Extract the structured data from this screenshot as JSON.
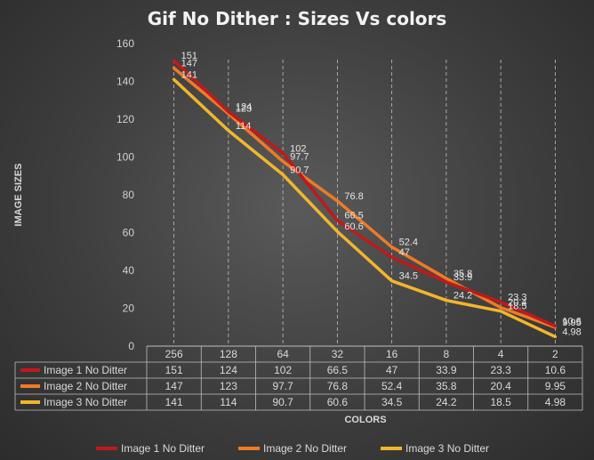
{
  "chart_data": {
    "type": "line",
    "title": "Gif No Dither  : Sizes Vs colors",
    "xlabel": "COLORS",
    "ylabel": "IMAGE SIZES",
    "categories": [
      "256",
      "128",
      "64",
      "32",
      "16",
      "8",
      "4",
      "2"
    ],
    "ylim": [
      0,
      160
    ],
    "yticks": [
      0,
      20,
      40,
      60,
      80,
      100,
      120,
      140,
      160
    ],
    "grid": "vertical dashed lines at categories",
    "legend": "bottom",
    "series": [
      {
        "name": "Image 1 No Ditter",
        "color": "#c0191b",
        "values": [
          151,
          124,
          102,
          66.5,
          47,
          33.9,
          23.3,
          10.6
        ]
      },
      {
        "name": "Image 2  No Ditter",
        "color": "#f07a24",
        "values": [
          147,
          123,
          97.7,
          76.8,
          52.4,
          35.8,
          20.4,
          9.95
        ]
      },
      {
        "name": "Image 3  No Ditter",
        "color": "#f2b62c",
        "values": [
          141,
          114,
          90.7,
          60.6,
          34.5,
          24.2,
          18.5,
          4.98
        ]
      }
    ]
  }
}
